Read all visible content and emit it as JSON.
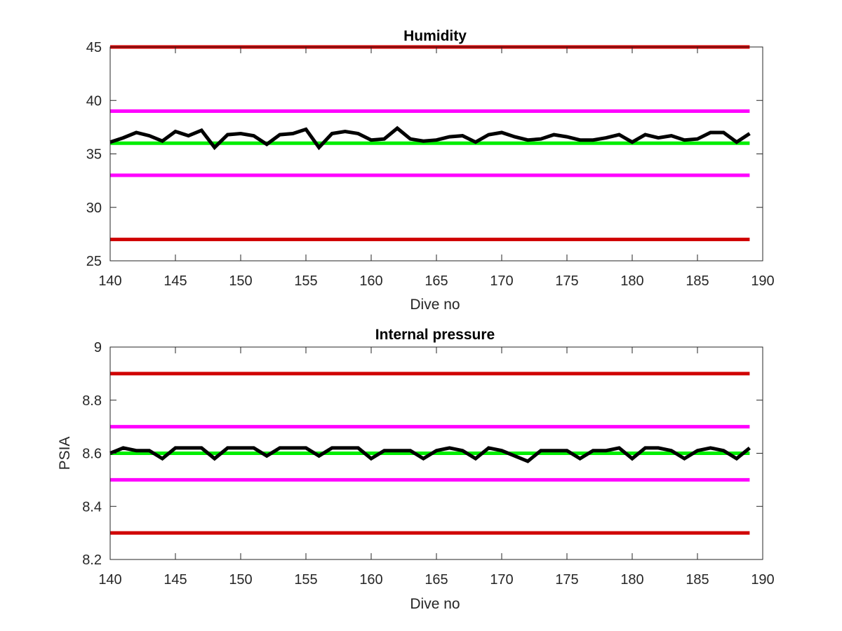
{
  "chart_data": [
    {
      "type": "line",
      "title": "Humidity",
      "xlabel": "Dive no",
      "ylabel": "",
      "xlim": [
        140,
        190
      ],
      "ylim": [
        25,
        45
      ],
      "xticks": [
        140,
        145,
        150,
        155,
        160,
        165,
        170,
        175,
        180,
        185,
        190
      ],
      "yticks": [
        25,
        30,
        35,
        40,
        45
      ],
      "grid": false,
      "series": [
        {
          "color": "#000000",
          "x": [
            140,
            141,
            142,
            143,
            144,
            145,
            146,
            147,
            148,
            149,
            150,
            151,
            152,
            153,
            154,
            155,
            156,
            157,
            158,
            159,
            160,
            161,
            162,
            163,
            164,
            165,
            166,
            167,
            168,
            169,
            170,
            171,
            172,
            173,
            174,
            175,
            176,
            177,
            178,
            179,
            180,
            181,
            182,
            183,
            184,
            185,
            186,
            187,
            188,
            189
          ],
          "values": [
            36.1,
            36.5,
            37.0,
            36.7,
            36.2,
            37.1,
            36.7,
            37.2,
            35.6,
            36.8,
            36.9,
            36.7,
            35.9,
            36.8,
            36.9,
            37.3,
            35.6,
            36.9,
            37.1,
            36.9,
            36.3,
            36.4,
            37.4,
            36.4,
            36.2,
            36.3,
            36.6,
            36.7,
            36.1,
            36.8,
            37.0,
            36.6,
            36.3,
            36.4,
            36.8,
            36.6,
            36.3,
            36.3,
            36.5,
            36.8,
            36.1,
            36.8,
            36.5,
            36.7,
            36.3,
            36.4,
            37.0,
            37.0,
            36.1,
            36.9
          ]
        },
        {
          "color": "#d00000",
          "x": [
            140,
            189
          ],
          "values": [
            45,
            45
          ]
        },
        {
          "color": "#ff00ff",
          "x": [
            140,
            189
          ],
          "values": [
            39,
            39
          ]
        },
        {
          "color": "#00ee00",
          "x": [
            140,
            189
          ],
          "values": [
            36,
            36
          ]
        },
        {
          "color": "#ff00ff",
          "x": [
            140,
            189
          ],
          "values": [
            33,
            33
          ]
        },
        {
          "color": "#d00000",
          "x": [
            140,
            189
          ],
          "values": [
            27,
            27
          ]
        }
      ]
    },
    {
      "type": "line",
      "title": "Internal pressure",
      "xlabel": "Dive no",
      "ylabel": "PSIA",
      "xlim": [
        140,
        190
      ],
      "ylim": [
        8.2,
        9.0
      ],
      "xticks": [
        140,
        145,
        150,
        155,
        160,
        165,
        170,
        175,
        180,
        185,
        190
      ],
      "yticks": [
        8.2,
        8.4,
        8.6,
        8.8,
        9
      ],
      "grid": false,
      "series": [
        {
          "color": "#000000",
          "x": [
            140,
            141,
            142,
            143,
            144,
            145,
            146,
            147,
            148,
            149,
            150,
            151,
            152,
            153,
            154,
            155,
            156,
            157,
            158,
            159,
            160,
            161,
            162,
            163,
            164,
            165,
            166,
            167,
            168,
            169,
            170,
            171,
            172,
            173,
            174,
            175,
            176,
            177,
            178,
            179,
            180,
            181,
            182,
            183,
            184,
            185,
            186,
            187,
            188,
            189
          ],
          "values": [
            8.6,
            8.62,
            8.61,
            8.61,
            8.58,
            8.62,
            8.62,
            8.62,
            8.58,
            8.62,
            8.62,
            8.62,
            8.59,
            8.62,
            8.62,
            8.62,
            8.59,
            8.62,
            8.62,
            8.62,
            8.58,
            8.61,
            8.61,
            8.61,
            8.58,
            8.61,
            8.62,
            8.61,
            8.58,
            8.62,
            8.61,
            8.59,
            8.57,
            8.61,
            8.61,
            8.61,
            8.58,
            8.61,
            8.61,
            8.62,
            8.58,
            8.62,
            8.62,
            8.61,
            8.58,
            8.61,
            8.62,
            8.61,
            8.58,
            8.62
          ]
        },
        {
          "color": "#d00000",
          "x": [
            140,
            189
          ],
          "values": [
            8.9,
            8.9
          ]
        },
        {
          "color": "#ff00ff",
          "x": [
            140,
            189
          ],
          "values": [
            8.7,
            8.7
          ]
        },
        {
          "color": "#00ee00",
          "x": [
            140,
            189
          ],
          "values": [
            8.6,
            8.6
          ]
        },
        {
          "color": "#ff00ff",
          "x": [
            140,
            189
          ],
          "values": [
            8.5,
            8.5
          ]
        },
        {
          "color": "#d00000",
          "x": [
            140,
            189
          ],
          "values": [
            8.3,
            8.3
          ]
        }
      ]
    }
  ]
}
